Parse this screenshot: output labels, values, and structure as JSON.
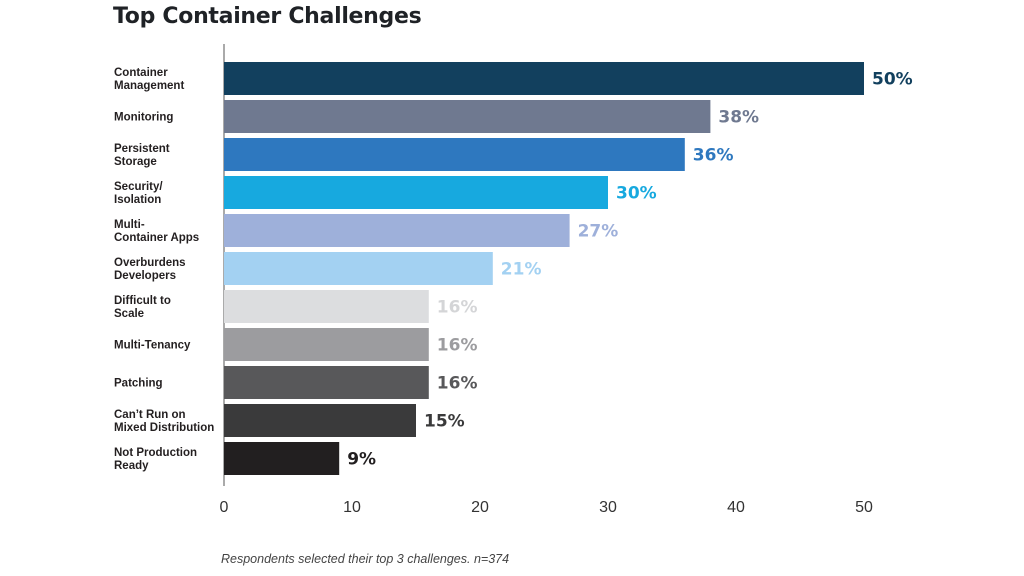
{
  "chart_data": {
    "type": "bar",
    "orientation": "horizontal",
    "title": "Top Container Challenges",
    "categories": [
      [
        "Container",
        "Management"
      ],
      [
        "Monitoring"
      ],
      [
        "Persistent",
        "Storage"
      ],
      [
        "Security/",
        "Isolation"
      ],
      [
        "Multi-",
        "Container Apps"
      ],
      [
        "Overburdens",
        "Developers"
      ],
      [
        "Difficult to",
        "Scale"
      ],
      [
        "Multi-Tenancy"
      ],
      [
        "Patching"
      ],
      [
        "Can’t Run on",
        "Mixed Distribution"
      ],
      [
        "Not Production",
        "Ready"
      ]
    ],
    "values": [
      50,
      38,
      36,
      30,
      27,
      21,
      16,
      16,
      16,
      15,
      9
    ],
    "value_labels": [
      "50%",
      "38%",
      "36%",
      "30%",
      "27%",
      "21%",
      "16%",
      "16%",
      "16%",
      "15%",
      "9%"
    ],
    "colors": [
      "#12405e",
      "#6f7990",
      "#2e78bf",
      "#17a9df",
      "#9eb0da",
      "#a3d1f2",
      "#dcdddf",
      "#9c9c9f",
      "#58585a",
      "#3a3a3b",
      "#221f20"
    ],
    "label_colors": [
      "#12405e",
      "#6f7990",
      "#2e78bf",
      "#17a9df",
      "#9eb0da",
      "#a3d1f2",
      "#d4d5d7",
      "#9c9c9f",
      "#58585a",
      "#3a3a3b",
      "#221f20"
    ],
    "xlim": [
      0,
      50
    ],
    "xticks": [
      0,
      10,
      20,
      30,
      40,
      50
    ],
    "grid": false,
    "legend": "none"
  },
  "footnote": "Respondents selected their top 3 challenges. n=374"
}
